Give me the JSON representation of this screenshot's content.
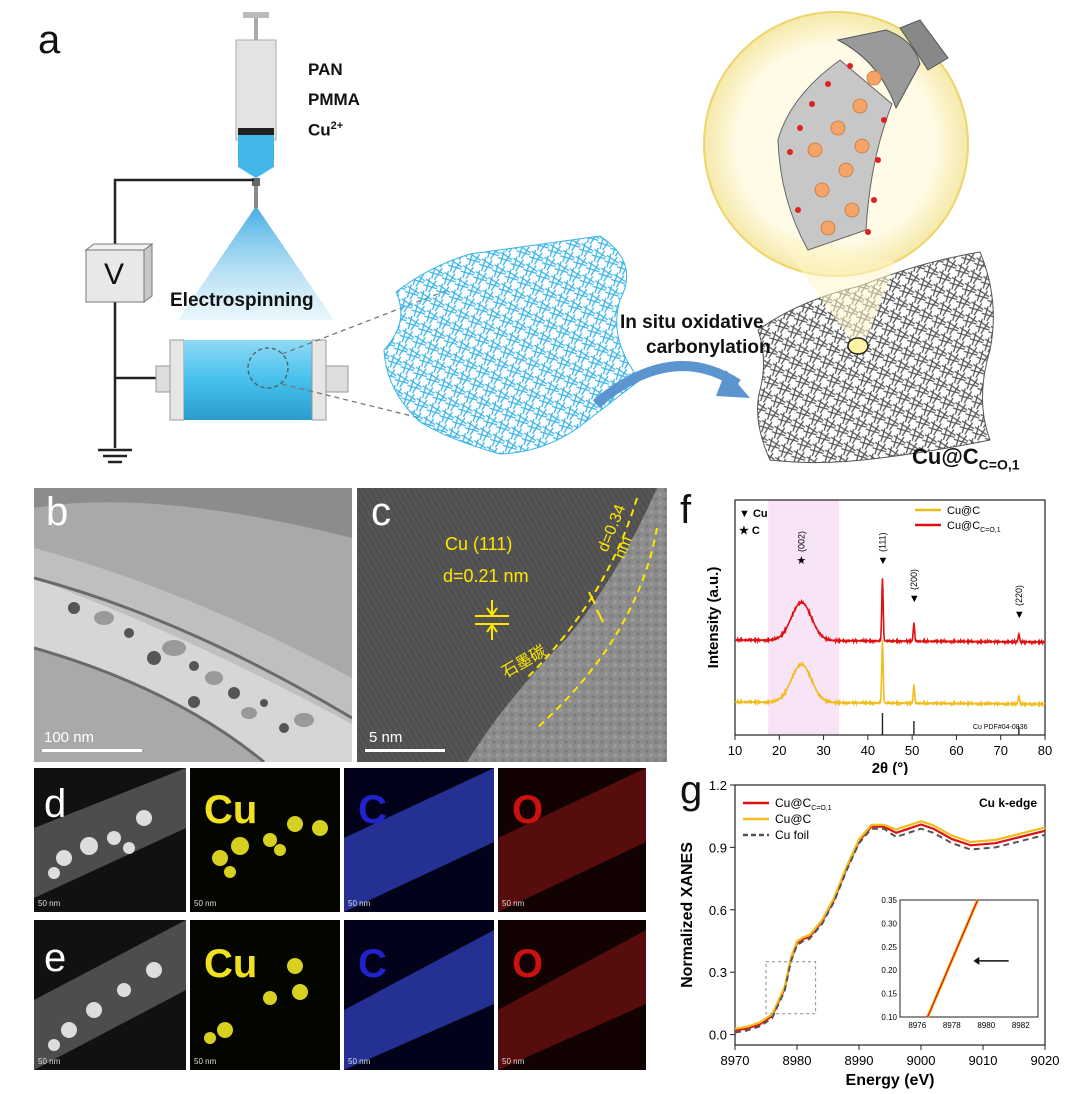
{
  "figure": {
    "panel_a": {
      "letter": "a",
      "precursors": [
        "PAN",
        "PMMA",
        "Cu"
      ],
      "cu_superscript": "2+",
      "voltage_label": "V",
      "process_label": "Electrospinning",
      "arrow_label_line1": "In situ oxidative",
      "arrow_label_line2": "carbonylation",
      "product_main": "Cu@C",
      "product_sub": "C=O,1"
    },
    "panel_b": {
      "letter": "b",
      "scalebar": "100 nm"
    },
    "panel_c": {
      "letter": "c",
      "scalebar": "5 nm",
      "lattice_label_1": "Cu (111)",
      "lattice_label_2": "d=0.21 nm",
      "graphite_label": "石墨碳",
      "graphite_spacing": "d=0.34 nm"
    },
    "panel_d": {
      "letter": "d",
      "labels": [
        "Cu",
        "C",
        "O"
      ],
      "scalebar": "50 nm"
    },
    "panel_e": {
      "letter": "e",
      "labels": [
        "Cu",
        "C",
        "O"
      ],
      "scalebar": "50 nm"
    },
    "colors": {
      "cu": "#f0e020",
      "c": "#2222cc",
      "o": "#cc1111",
      "red": "#e01010",
      "yellow": "#f2bd1c"
    }
  },
  "chart_data": [
    {
      "panel": "f",
      "type": "line",
      "xlabel": "2θ (°)",
      "ylabel": "Intensity (a.u.)",
      "xlim": [
        10,
        80
      ],
      "xticks": [
        10,
        20,
        30,
        40,
        50,
        60,
        70,
        80
      ],
      "legend_markers": [
        "▼ Cu",
        "★ C"
      ],
      "highlight_range": [
        17.5,
        33.5
      ],
      "series": [
        {
          "name": "Cu@C",
          "color": "#f2bd1c",
          "offset": 0
        },
        {
          "name": "Cu@C",
          "sub": "C=O,1",
          "color": "#e01010",
          "offset": 1
        }
      ],
      "peaks": [
        {
          "x": 25,
          "label": "(002)",
          "marker": "★",
          "type": "broad"
        },
        {
          "x": 43.3,
          "label": "(111)",
          "marker": "▼",
          "type": "sharp"
        },
        {
          "x": 50.4,
          "label": "(200)",
          "marker": "▼",
          "type": "sharp"
        },
        {
          "x": 74.1,
          "label": "(220)",
          "marker": "▼",
          "type": "sharp"
        }
      ],
      "reference": {
        "label": "Cu PDF#04-0836",
        "lines": [
          43.3,
          50.4,
          74.1
        ]
      }
    },
    {
      "panel": "g",
      "type": "line",
      "xlabel": "Energy (eV)",
      "ylabel": "Normalized XANES",
      "xlim": [
        8970,
        9020
      ],
      "ylim": [
        -0.05,
        1.2
      ],
      "xticks": [
        8970,
        8980,
        8990,
        9000,
        9010,
        9020
      ],
      "yticks": [
        0.0,
        0.3,
        0.6,
        0.9,
        1.2
      ],
      "annotation": "Cu k-edge",
      "series": [
        {
          "name": "Cu@C",
          "sub": "C=O,1",
          "color": "#e01010",
          "style": "solid"
        },
        {
          "name": "Cu@C",
          "color": "#f2bd1c",
          "style": "solid"
        },
        {
          "name": "Cu foil",
          "color": "#555555",
          "style": "dashed"
        }
      ],
      "points": [
        [
          8970,
          0.02
        ],
        [
          8972,
          0.03
        ],
        [
          8974,
          0.05
        ],
        [
          8976,
          0.09
        ],
        [
          8978,
          0.22
        ],
        [
          8979,
          0.36
        ],
        [
          8980,
          0.44
        ],
        [
          8981,
          0.46
        ],
        [
          8982,
          0.47
        ],
        [
          8984,
          0.54
        ],
        [
          8986,
          0.65
        ],
        [
          8988,
          0.8
        ],
        [
          8990,
          0.93
        ],
        [
          8992,
          1.0
        ],
        [
          8994,
          1.0
        ],
        [
          8996,
          0.97
        ],
        [
          8998,
          0.99
        ],
        [
          9000,
          1.01
        ],
        [
          9002,
          0.99
        ],
        [
          9005,
          0.94
        ],
        [
          9008,
          0.91
        ],
        [
          9012,
          0.92
        ],
        [
          9016,
          0.95
        ],
        [
          9020,
          0.98
        ]
      ],
      "inset": {
        "xlim": [
          8975,
          8983
        ],
        "ylim": [
          0.1,
          0.35
        ],
        "xticks": [
          8976,
          8978,
          8980,
          8982
        ],
        "yticks": [
          0.1,
          0.15,
          0.2,
          0.25,
          0.3,
          0.35
        ],
        "line": [
          [
            8976.6,
            0.1
          ],
          [
            8979.5,
            0.35
          ]
        ]
      }
    }
  ]
}
